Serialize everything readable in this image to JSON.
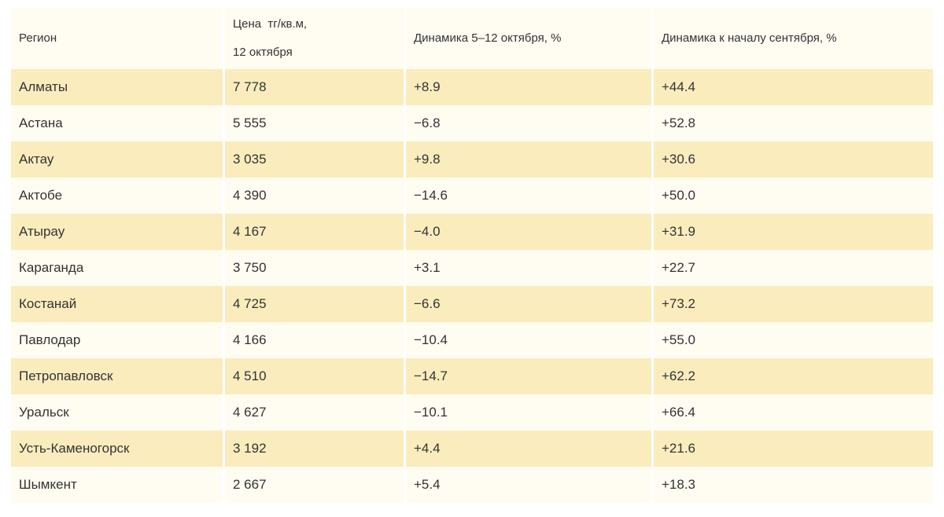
{
  "chart_data": {
    "type": "table",
    "columns": [
      "Регион",
      "Цена  тг/кв.м,\n12 октября",
      "Динамика 5–12 октября, %",
      "Динамика к началу сентября, %"
    ],
    "rows": [
      {
        "region": "Алматы",
        "price": "7 778",
        "week": "+8.9",
        "month": "+44.4"
      },
      {
        "region": "Астана",
        "price": "5 555",
        "week": "−6.8",
        "month": "+52.8"
      },
      {
        "region": "Актау",
        "price": "3 035",
        "week": "+9.8",
        "month": "+30.6"
      },
      {
        "region": "Актобе",
        "price": "4 390",
        "week": "−14.6",
        "month": "+50.0"
      },
      {
        "region": "Атырау",
        "price": "4 167",
        "week": "−4.0",
        "month": "+31.9"
      },
      {
        "region": "Караганда",
        "price": "3 750",
        "week": "+3.1",
        "month": "+22.7"
      },
      {
        "region": "Костанай",
        "price": "4 725",
        "week": "−6.6",
        "month": "+73.2"
      },
      {
        "region": "Павлодар",
        "price": "4 166",
        "week": "−10.4",
        "month": "+55.0"
      },
      {
        "region": "Петропавловск",
        "price": "4 510",
        "week": "−14.7",
        "month": "+62.2"
      },
      {
        "region": "Уральск",
        "price": "4 627",
        "week": "−10.1",
        "month": "+66.4"
      },
      {
        "region": "Усть-Каменогорск",
        "price": "3 192",
        "week": "+4.4",
        "month": "+21.6"
      },
      {
        "region": "Шымкент",
        "price": "2 667",
        "week": "+5.4",
        "month": "+18.3"
      }
    ],
    "layout": {
      "striped": true,
      "grid": "white 3px column gaps, no visible borders"
    }
  },
  "colors": {
    "row_stripe": "#FAECBD",
    "row_plain": "#FFFCF2",
    "header_bg": "#FFFCF2",
    "text": "#333333",
    "page_bg": "#FFFFFF"
  }
}
